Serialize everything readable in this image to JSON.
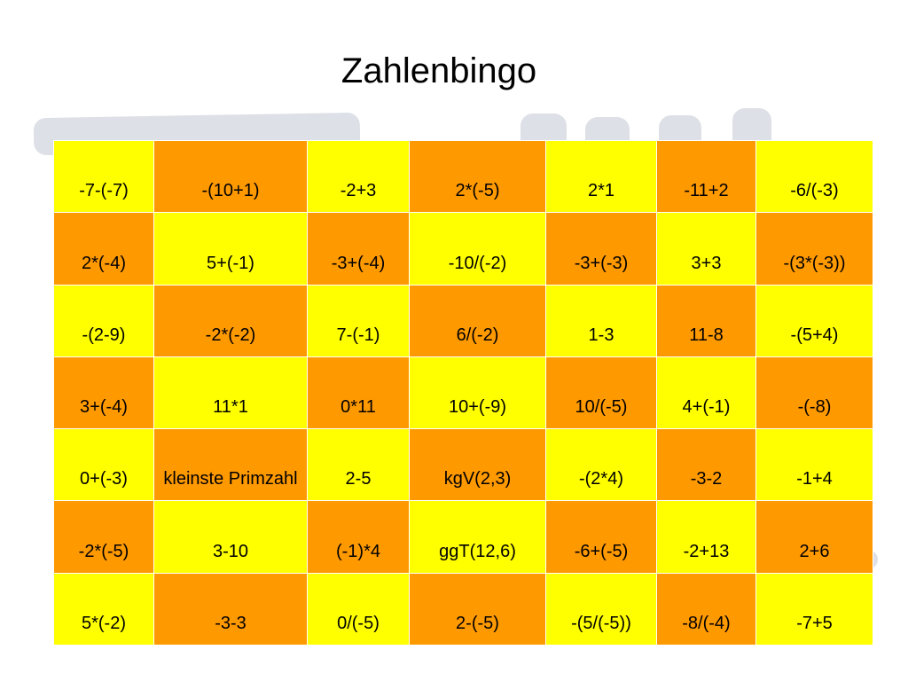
{
  "title": "Zahlenbingo",
  "colors": {
    "yellow": "#ffff00",
    "orange": "#ff9900"
  },
  "grid": [
    [
      "-7-(-7)",
      "-(10+1)",
      "-2+3",
      "2*(-5)",
      "2*1",
      "-11+2",
      "-6/(-3)"
    ],
    [
      "2*(-4)",
      "5+(-1)",
      "-3+(-4)",
      "-10/(-2)",
      "-3+(-3)",
      "3+3",
      "-(3*(-3))"
    ],
    [
      "-(2-9)",
      "-2*(-2)",
      "7-(-1)",
      "6/(-2)",
      "1-3",
      "11-8",
      "-(5+4)"
    ],
    [
      "3+(-4)",
      "11*1",
      "0*11",
      "10+(-9)",
      "10/(-5)",
      "4+(-1)",
      "-(-8)"
    ],
    [
      "0+(-3)",
      "kleinste Primzahl",
      "2-5",
      "kgV(2,3)",
      "-(2*4)",
      "-3-2",
      "-1+4"
    ],
    [
      "-2*(-5)",
      "3-10",
      "(-1)*4",
      "ggT(12,6)",
      "-6+(-5)",
      "-2+13",
      "2+6"
    ],
    [
      "5*(-2)",
      "-3-3",
      "0/(-5)",
      "2-(-5)",
      "-(5/(-5))",
      "-8/(-4)",
      "-7+5"
    ]
  ]
}
